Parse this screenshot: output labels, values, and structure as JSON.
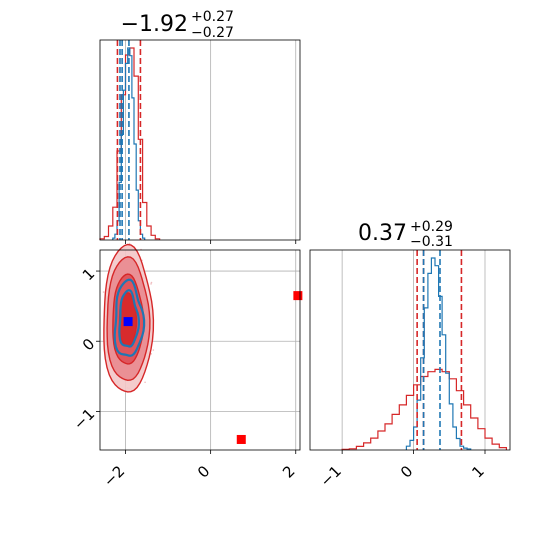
{
  "colors": {
    "red": "#d62728",
    "blue": "#1f77b4",
    "marker_blue": "#0000ff",
    "marker_red": "#ff0000",
    "grid": "#b0b0b0"
  },
  "chart_data": [
    {
      "type": "histogram",
      "panel": "top-left",
      "title": {
        "main": "−1.92",
        "sup": "+0.27",
        "sub": "−0.27"
      },
      "xlim": [
        -2.6,
        2.1
      ],
      "x_ticks": [
        -2,
        0,
        2
      ],
      "grid": true,
      "dashed_lines": {
        "red": [
          -2.19,
          -1.65
        ],
        "blue": [
          -2.13,
          -2.08,
          -1.92
        ]
      },
      "series": [
        {
          "color": "red",
          "bin_edges": [
            -2.6,
            -2.5,
            -2.4,
            -2.3,
            -2.2,
            -2.1,
            -2.0,
            -1.9,
            -1.8,
            -1.7,
            -1.6,
            -1.5,
            -1.4,
            -1.3,
            -1.2
          ],
          "counts": [
            0.5,
            1.5,
            6,
            14,
            38,
            62,
            79,
            82,
            70,
            43,
            16,
            6,
            2,
            0.5
          ]
        },
        {
          "color": "blue",
          "bin_edges": [
            -2.3,
            -2.25,
            -2.2,
            -2.15,
            -2.1,
            -2.05,
            -2.0,
            -1.95,
            -1.9,
            -1.85,
            -1.8,
            -1.75,
            -1.7,
            -1.65,
            -1.6,
            -1.55
          ],
          "counts": [
            1,
            3,
            10,
            30,
            55,
            78,
            92,
            100,
            96,
            74,
            50,
            26,
            10,
            3,
            1
          ]
        }
      ]
    },
    {
      "type": "contour",
      "panel": "bottom-left",
      "xlim": [
        -2.6,
        2.1
      ],
      "ylim": [
        -1.55,
        1.3
      ],
      "x_ticks": [
        -2,
        0,
        2
      ],
      "y_ticks": [
        -1,
        0,
        1
      ],
      "grid": true,
      "red_center": [
        -1.95,
        0.3
      ],
      "red_levels": [
        [
          0.58,
          1.05
        ],
        [
          0.5,
          0.88
        ],
        [
          0.36,
          0.64
        ],
        [
          0.2,
          0.38
        ]
      ],
      "blue_center": [
        -1.93,
        0.3
      ],
      "blue_levels": [
        [
          0.33,
          0.54
        ],
        [
          0.22,
          0.4
        ]
      ],
      "markers": [
        {
          "color": "marker_blue",
          "x": -1.94,
          "y": 0.28
        },
        {
          "color": "marker_red",
          "x": 0.72,
          "y": -1.4
        },
        {
          "color": "marker_red",
          "x": 2.05,
          "y": 0.65
        }
      ]
    },
    {
      "type": "histogram",
      "panel": "bottom-right",
      "title": {
        "main": "0.37",
        "sup": "+0.29",
        "sub": "−0.31"
      },
      "xlim": [
        -1.45,
        1.35
      ],
      "x_ticks": [
        -1,
        0,
        1
      ],
      "grid": true,
      "dashed_lines": {
        "red": [
          0.05,
          0.14,
          0.67
        ],
        "blue": [
          0.14,
          0.37
        ]
      },
      "series": [
        {
          "color": "red",
          "bin_edges": [
            -1.0,
            -0.9,
            -0.8,
            -0.7,
            -0.6,
            -0.5,
            -0.4,
            -0.3,
            -0.2,
            -0.1,
            0.0,
            0.1,
            0.2,
            0.3,
            0.4,
            0.5,
            0.6,
            0.7,
            0.8,
            0.9,
            1.0,
            1.1,
            1.2,
            1.3
          ],
          "counts": [
            0.5,
            1,
            3,
            6,
            10,
            16,
            22,
            30,
            38,
            46,
            55,
            62,
            66,
            68,
            66,
            60,
            50,
            38,
            27,
            18,
            10,
            5,
            2
          ]
        },
        {
          "color": "blue",
          "bin_edges": [
            -0.1,
            -0.05,
            0.0,
            0.05,
            0.1,
            0.15,
            0.2,
            0.25,
            0.3,
            0.35,
            0.4,
            0.45,
            0.5,
            0.55,
            0.6,
            0.65,
            0.7,
            0.75,
            0.8
          ],
          "counts": [
            2,
            5,
            12,
            26,
            48,
            74,
            92,
            100,
            96,
            80,
            60,
            40,
            24,
            12,
            6,
            2,
            1,
            0.5
          ]
        }
      ]
    }
  ]
}
